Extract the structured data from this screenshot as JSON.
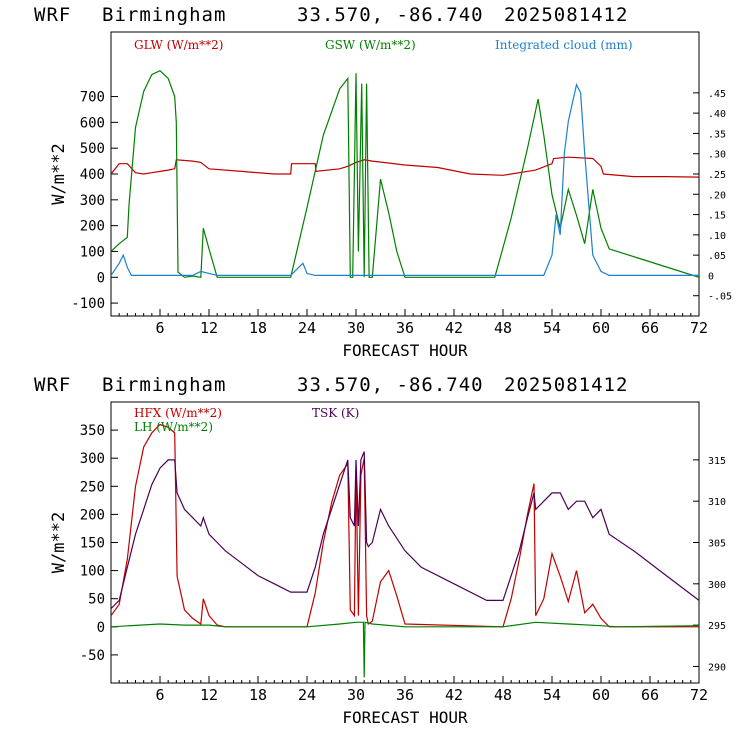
{
  "charts": [
    {
      "header": {
        "model": "WRF",
        "location": "Birmingham",
        "coords": "33.570, -86.740",
        "run": "2025081412"
      },
      "xlabel": "FORECAST HOUR",
      "ylabel": "W/m**2"
    },
    {
      "header": {
        "model": "WRF",
        "location": "Birmingham",
        "coords": "33.570, -86.740",
        "run": "2025081412"
      },
      "xlabel": "FORECAST HOUR",
      "ylabel": "W/m**2"
    }
  ],
  "colors": {
    "glw": "#c00000",
    "gsw": "#008000",
    "cloud": "#1e7fd0",
    "hfx": "#c00000",
    "lh": "#008000",
    "tsk": "#4b0055"
  },
  "chart_data": [
    {
      "type": "line",
      "xlabel": "FORECAST HOUR",
      "ylabel": "W/m**2",
      "xlim": [
        0,
        72
      ],
      "ylim": [
        -150,
        950
      ],
      "x_ticks": [
        6,
        12,
        18,
        24,
        30,
        36,
        42,
        48,
        54,
        60,
        66,
        72
      ],
      "y_ticks": [
        -100,
        0,
        100,
        200,
        300,
        400,
        500,
        600,
        700
      ],
      "y2_label": "Integrated cloud (mm)",
      "y2lim": [
        -0.1,
        0.6
      ],
      "y2_ticks": [
        -0.05,
        0,
        0.05,
        0.1,
        0.15,
        0.2,
        0.25,
        0.3,
        0.35,
        0.4,
        0.45
      ],
      "y2_tick_labels": [
        "-.05",
        "0",
        ".05",
        ".10",
        ".15",
        ".20",
        ".25",
        ".30",
        ".35",
        ".40",
        ".45"
      ],
      "series": [
        {
          "name": "GLW (W/m**2)",
          "color": "#c00000",
          "axis": "left",
          "x": [
            0,
            1,
            2,
            3,
            4,
            5,
            6,
            7,
            7.8,
            8,
            10,
            11,
            12,
            16,
            20,
            22,
            22.1,
            25,
            25.1,
            28,
            29,
            30,
            31,
            32,
            36,
            40,
            44,
            48,
            52,
            54,
            54.2,
            56,
            59,
            60,
            60.3,
            64,
            68,
            72
          ],
          "y": [
            400,
            440,
            440,
            405,
            400,
            405,
            410,
            415,
            420,
            455,
            450,
            445,
            420,
            410,
            400,
            400,
            440,
            440,
            410,
            420,
            430,
            445,
            455,
            450,
            435,
            425,
            400,
            395,
            415,
            440,
            460,
            465,
            460,
            430,
            400,
            390,
            390,
            388
          ]
        },
        {
          "name": "GSW (W/m**2)",
          "color": "#008000",
          "axis": "left",
          "x": [
            0,
            1,
            2,
            2.2,
            3,
            4,
            5,
            6,
            7,
            7.8,
            8,
            8.2,
            9,
            10,
            11,
            11.3,
            12,
            13,
            22,
            24,
            26,
            28,
            29,
            29.3,
            29.6,
            30,
            30.3,
            30.7,
            31,
            31.3,
            31.6,
            32,
            33,
            34,
            35,
            36,
            47,
            49,
            51,
            52.3,
            53,
            54,
            55,
            56,
            57,
            58,
            59,
            60,
            61,
            72
          ],
          "y": [
            100,
            130,
            155,
            280,
            580,
            720,
            785,
            800,
            770,
            700,
            600,
            20,
            0,
            5,
            0,
            190,
            110,
            0,
            0,
            270,
            550,
            730,
            770,
            0,
            0,
            790,
            100,
            750,
            0,
            750,
            0,
            0,
            380,
            250,
            100,
            0,
            0,
            230,
            500,
            690,
            550,
            320,
            190,
            340,
            240,
            130,
            340,
            190,
            110,
            0
          ]
        },
        {
          "name": "Integrated cloud (mm)",
          "color": "#1e7fd0",
          "axis": "right",
          "x": [
            0,
            1,
            1.5,
            2,
            2.5,
            3,
            10,
            11,
            12,
            13,
            22,
            23,
            23.5,
            24,
            25,
            53,
            54,
            54.5,
            55,
            55.5,
            56,
            57,
            57.5,
            58,
            59,
            60,
            61,
            72
          ],
          "y": [
            0.0,
            0.03,
            0.05,
            0.02,
            0.0,
            0.0,
            0.0,
            0.01,
            0.005,
            0.0,
            0.0,
            0.02,
            0.03,
            0.005,
            0.0,
            0.0,
            0.05,
            0.15,
            0.1,
            0.3,
            0.38,
            0.47,
            0.45,
            0.3,
            0.05,
            0.01,
            0.0,
            0.0
          ]
        }
      ]
    },
    {
      "type": "line",
      "xlabel": "FORECAST HOUR",
      "ylabel": "W/m**2",
      "xlim": [
        0,
        72
      ],
      "ylim": [
        -100,
        400
      ],
      "x_ticks": [
        6,
        12,
        18,
        24,
        30,
        36,
        42,
        48,
        54,
        60,
        66,
        72
      ],
      "y_ticks": [
        -50,
        0,
        50,
        100,
        150,
        200,
        250,
        300,
        350
      ],
      "y2_label": "TSK (K)",
      "y2lim": [
        288,
        322
      ],
      "y2_ticks": [
        290,
        295,
        300,
        305,
        310,
        315
      ],
      "y2_tick_labels": [
        "290",
        "295",
        "300",
        "305",
        "310",
        "315"
      ],
      "series": [
        {
          "name": "HFX (W/m**2)",
          "color": "#c00000",
          "axis": "left",
          "x": [
            0,
            1,
            2,
            3,
            4,
            5,
            6,
            7,
            7.8,
            8.1,
            9,
            10,
            11,
            11.3,
            12,
            13,
            14,
            24,
            25,
            26,
            27,
            28,
            29,
            29.3,
            29.8,
            30,
            30.3,
            30.6,
            31,
            31.3,
            31.5,
            32,
            33,
            34,
            35,
            36,
            48,
            49,
            50,
            51,
            51.8,
            52,
            53,
            54,
            55,
            56,
            57,
            58,
            59,
            60,
            61,
            72
          ],
          "y": [
            20,
            40,
            120,
            250,
            320,
            345,
            360,
            355,
            345,
            90,
            30,
            15,
            5,
            50,
            20,
            3,
            0,
            0,
            60,
            150,
            220,
            270,
            290,
            30,
            20,
            280,
            20,
            270,
            300,
            20,
            5,
            10,
            80,
            100,
            55,
            5,
            0,
            50,
            120,
            200,
            255,
            20,
            50,
            130,
            90,
            45,
            100,
            25,
            40,
            15,
            0,
            0
          ]
        },
        {
          "name": "LH (W/m**2)",
          "color": "#008000",
          "axis": "left",
          "x": [
            0,
            6,
            9,
            12,
            14,
            24,
            28,
            30,
            30.9,
            31,
            31.1,
            32,
            36,
            48,
            52,
            56,
            60,
            62,
            72
          ],
          "y": [
            0,
            5,
            3,
            3,
            0,
            0,
            5,
            8,
            8,
            -90,
            8,
            5,
            0,
            0,
            8,
            5,
            2,
            0,
            2
          ]
        },
        {
          "name": "TSK (K)",
          "color": "#4b0055",
          "axis": "right",
          "x": [
            0,
            1,
            2,
            3,
            4,
            5,
            6,
            7,
            7.8,
            8.1,
            9,
            10,
            11,
            11.3,
            12,
            13,
            14,
            16,
            18,
            20,
            22,
            24,
            25,
            26,
            27,
            28,
            29,
            29.3,
            29.8,
            30,
            30.3,
            30.6,
            31,
            31.3,
            31.5,
            32,
            33,
            34,
            36,
            38,
            42,
            46,
            48,
            49,
            50,
            51,
            51.8,
            52,
            53,
            54,
            55,
            56,
            57,
            58,
            59,
            60,
            61,
            64,
            68,
            72
          ],
          "y": [
            297,
            298,
            302,
            306,
            309,
            312,
            314,
            315,
            315,
            311,
            309,
            308,
            307,
            308,
            306,
            305,
            304,
            302.5,
            301,
            300,
            299,
            299,
            302,
            306,
            309,
            312,
            315,
            308,
            307,
            315,
            307,
            315,
            316,
            305,
            304.5,
            305,
            309,
            307,
            304,
            302,
            300,
            298,
            298,
            301,
            304,
            308,
            311,
            309,
            310,
            311,
            311,
            309,
            310,
            310,
            308,
            309,
            306,
            304,
            301,
            298
          ]
        }
      ]
    }
  ]
}
